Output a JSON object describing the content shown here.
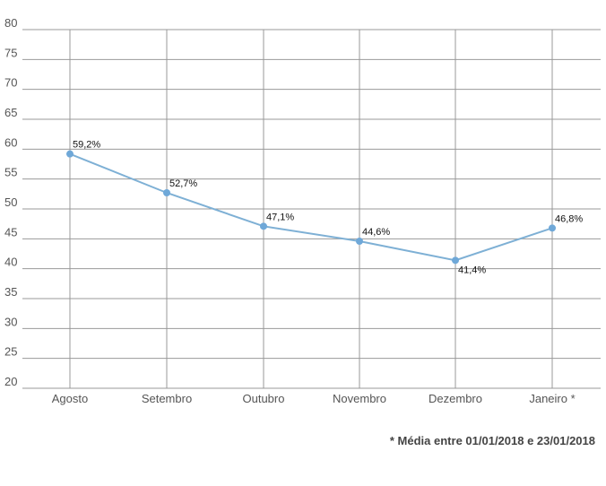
{
  "chart_data": {
    "type": "line",
    "categories": [
      "Agosto",
      "Setembro",
      "Outubro",
      "Novembro",
      "Dezembro",
      "Janeiro *"
    ],
    "series": [
      {
        "values": [
          59.2,
          52.7,
          47.1,
          44.6,
          41.4,
          46.8
        ]
      }
    ],
    "data_labels": [
      "59,2%",
      "52,7%",
      "47,1%",
      "44,6%",
      "41,4%",
      "46,8%"
    ],
    "ylim": [
      20,
      80
    ],
    "yticks": [
      "20",
      "25",
      "30",
      "35",
      "40",
      "45",
      "50",
      "55",
      "60",
      "65",
      "70",
      "75",
      "80"
    ],
    "grid": true,
    "line_color": "#7eb0d5",
    "point_color": "#6fa8d8",
    "grid_color": "#999999"
  },
  "footnote": "* Média entre 01/01/2018 e 23/01/2018"
}
